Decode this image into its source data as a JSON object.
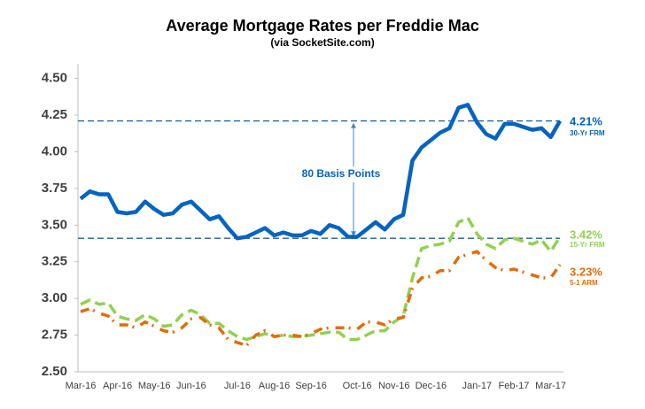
{
  "chart_data": {
    "type": "line",
    "title": "Average Mortgage Rates per Freddie Mac",
    "subtitle": "(via SocketSite.com)",
    "categories": [
      "Mar-16",
      null,
      null,
      null,
      "Apr-16",
      null,
      null,
      null,
      "May-16",
      null,
      null,
      null,
      "Jun-16",
      null,
      null,
      null,
      null,
      "Jul-16",
      null,
      null,
      null,
      "Aug-16",
      null,
      null,
      null,
      "Sep-16",
      null,
      null,
      null,
      null,
      "Oct-16",
      null,
      null,
      null,
      "Nov-16",
      null,
      null,
      null,
      "Dec-16",
      null,
      null,
      null,
      null,
      "Jan-17",
      null,
      null,
      null,
      "Feb-17",
      null,
      null,
      null,
      "Mar-17",
      null
    ],
    "series": [
      {
        "name": "30-Yr FRM",
        "color": "#0563c1",
        "dash": "solid",
        "values": [
          3.68,
          3.73,
          3.71,
          3.71,
          3.59,
          3.58,
          3.59,
          3.66,
          3.61,
          3.57,
          3.58,
          3.64,
          3.66,
          3.6,
          3.54,
          3.56,
          3.48,
          3.41,
          3.42,
          3.45,
          3.48,
          3.43,
          3.45,
          3.43,
          3.43,
          3.46,
          3.44,
          3.5,
          3.48,
          3.42,
          3.42,
          3.47,
          3.52,
          3.47,
          3.54,
          3.57,
          3.94,
          4.03,
          4.08,
          4.13,
          4.16,
          4.3,
          4.32,
          4.2,
          4.12,
          4.09,
          4.19,
          4.19,
          4.17,
          4.15,
          4.16,
          4.1,
          4.21
        ],
        "end_label": "4.21%"
      },
      {
        "name": "15-Yr FRM",
        "color": "#92d050",
        "dash": "dashed",
        "values": [
          2.96,
          2.99,
          2.96,
          2.97,
          2.88,
          2.86,
          2.85,
          2.89,
          2.86,
          2.81,
          2.82,
          2.89,
          2.92,
          2.89,
          2.83,
          2.83,
          2.78,
          2.74,
          2.72,
          2.74,
          2.76,
          2.74,
          2.75,
          2.74,
          2.74,
          2.75,
          2.76,
          2.77,
          2.77,
          2.72,
          2.72,
          2.75,
          2.78,
          2.78,
          2.84,
          2.88,
          3.14,
          3.34,
          3.36,
          3.37,
          3.39,
          3.52,
          3.55,
          3.44,
          3.37,
          3.34,
          3.4,
          3.41,
          3.39,
          3.37,
          3.4,
          3.32,
          3.42
        ],
        "end_label": "3.42%"
      },
      {
        "name": "5-1 ARM",
        "color": "#e36c09",
        "dash": "dashdot",
        "values": [
          2.91,
          2.93,
          2.9,
          2.88,
          2.82,
          2.82,
          2.8,
          2.84,
          2.81,
          2.78,
          2.77,
          2.8,
          2.86,
          2.87,
          2.82,
          2.8,
          2.72,
          2.7,
          2.68,
          2.75,
          2.78,
          2.74,
          2.75,
          2.75,
          2.74,
          2.76,
          2.79,
          2.8,
          2.8,
          2.8,
          2.79,
          2.84,
          2.84,
          2.82,
          2.86,
          2.87,
          3.07,
          3.14,
          3.15,
          3.19,
          3.19,
          3.28,
          3.3,
          3.32,
          3.26,
          3.21,
          3.19,
          3.2,
          3.18,
          3.16,
          3.14,
          3.14,
          3.23
        ],
        "end_label": "3.23%"
      }
    ],
    "reference_lines": [
      4.21,
      3.41
    ],
    "annotation": "80 Basis Points",
    "ylim": [
      2.5,
      4.6
    ],
    "yticks": [
      {
        "value": 2.5,
        "label": "2.50"
      },
      2.75,
      {
        "value": 3,
        "label": "3.00"
      },
      3.25,
      {
        "value": 3.5,
        "label": "3.50"
      },
      3.75,
      {
        "value": 4,
        "label": "4.00"
      },
      4.25,
      {
        "value": 4.5,
        "label": "4.50"
      }
    ],
    "grid": false
  }
}
